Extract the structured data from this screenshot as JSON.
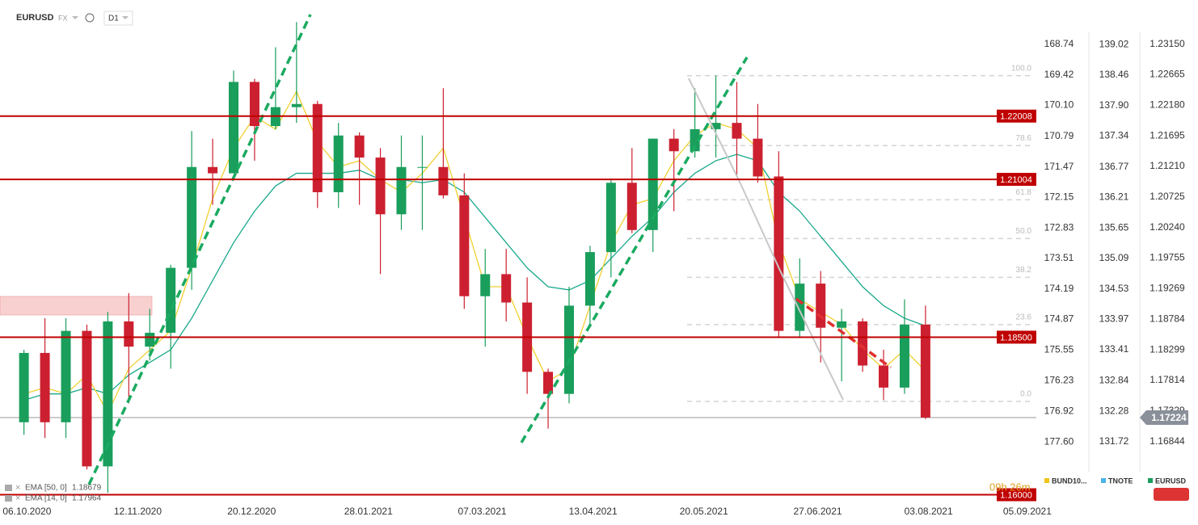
{
  "chart_data": {
    "type": "candlestick",
    "symbol": "EURUSD",
    "market": "FX",
    "interval": "D1",
    "up_color": "#1a9e5c",
    "down_color": "#cc2030",
    "x": [
      "05.10.2020",
      "12.10.2020",
      "19.10.2020",
      "26.10.2020",
      "02.11.2020",
      "09.11.2020",
      "16.11.2020",
      "23.11.2020",
      "30.11.2020",
      "07.12.2020",
      "14.12.2020",
      "21.12.2020",
      "28.12.2020",
      "04.01.2021",
      "11.01.2021",
      "18.01.2021",
      "25.01.2021",
      "01.02.2021",
      "08.02.2021",
      "15.02.2021",
      "22.02.2021",
      "01.03.2021",
      "08.03.2021",
      "15.03.2021",
      "22.03.2021",
      "29.03.2021",
      "05.04.2021",
      "12.04.2021",
      "19.04.2021",
      "26.04.2021",
      "03.05.2021",
      "10.05.2021",
      "17.05.2021",
      "24.05.2021",
      "31.05.2021",
      "07.06.2021",
      "14.06.2021",
      "21.06.2021",
      "28.06.2021",
      "05.07.2021",
      "12.07.2021",
      "19.07.2021",
      "26.07.2021",
      "02.08.2021"
    ],
    "open": [
      1.1715,
      1.1825,
      1.1715,
      1.186,
      1.1645,
      1.1875,
      1.1835,
      1.1857,
      1.196,
      1.212,
      1.211,
      1.2255,
      1.2185,
      1.2215,
      1.222,
      1.208,
      1.217,
      1.2135,
      1.2045,
      1.212,
      1.212,
      1.2075,
      1.1915,
      1.195,
      1.1905,
      1.1795,
      1.176,
      1.19,
      1.1985,
      1.2095,
      1.202,
      1.2165,
      1.2145,
      1.218,
      1.219,
      1.2165,
      1.2105,
      1.186,
      1.1935,
      1.1865,
      1.1875,
      1.1805,
      1.177,
      1.187
    ],
    "high": [
      1.183,
      1.188,
      1.188,
      1.187,
      1.189,
      1.192,
      1.1895,
      1.1965,
      1.2177,
      1.2165,
      1.2273,
      1.226,
      1.231,
      1.235,
      1.2225,
      1.219,
      1.2175,
      1.215,
      1.217,
      1.217,
      1.2245,
      1.211,
      1.199,
      1.199,
      1.1945,
      1.18,
      1.193,
      1.1995,
      1.21,
      1.215,
      1.2165,
      1.218,
      1.2245,
      1.2265,
      1.2255,
      1.222,
      1.2145,
      1.1975,
      1.1955,
      1.1895,
      1.188,
      1.183,
      1.191,
      1.19
    ],
    "low": [
      1.1695,
      1.169,
      1.169,
      1.164,
      1.1603,
      1.1745,
      1.1813,
      1.18,
      1.1925,
      1.206,
      1.211,
      1.213,
      1.218,
      1.219,
      1.2055,
      1.2055,
      1.206,
      1.195,
      1.202,
      1.202,
      1.207,
      1.1895,
      1.1835,
      1.1875,
      1.176,
      1.1705,
      1.1745,
      1.187,
      1.1945,
      1.2015,
      1.1985,
      1.205,
      1.2135,
      1.2135,
      1.2105,
      1.2095,
      1.185,
      1.185,
      1.181,
      1.178,
      1.1795,
      1.175,
      1.176,
      1.172
    ],
    "close": [
      1.1825,
      1.1715,
      1.186,
      1.1645,
      1.1875,
      1.1835,
      1.1857,
      1.196,
      1.212,
      1.211,
      1.2255,
      1.2185,
      1.2215,
      1.222,
      1.208,
      1.217,
      1.2135,
      1.2045,
      1.212,
      1.212,
      1.2075,
      1.1915,
      1.195,
      1.1905,
      1.1795,
      1.176,
      1.19,
      1.1985,
      1.2095,
      1.202,
      1.2165,
      1.2145,
      1.218,
      1.219,
      1.2165,
      1.2105,
      1.186,
      1.1935,
      1.1865,
      1.1875,
      1.1805,
      1.177,
      1.187,
      1.17224
    ],
    "series": [
      {
        "name": "EMA [50, 0]",
        "color": "#19a88a",
        "values": [
          1.175,
          1.176,
          1.176,
          1.177,
          1.176,
          1.179,
          1.181,
          1.183,
          1.188,
          1.194,
          1.2,
          1.205,
          1.209,
          1.211,
          1.211,
          1.211,
          1.2115,
          1.21,
          1.21,
          1.2095,
          1.21,
          1.208,
          1.204,
          1.2,
          1.196,
          1.193,
          1.1925,
          1.194,
          1.1975,
          1.201,
          1.204,
          1.208,
          1.211,
          1.213,
          1.214,
          1.213,
          1.208,
          1.205,
          1.201,
          1.197,
          1.193,
          1.19,
          1.188,
          1.18679
        ]
      },
      {
        "name": "EMA [14, 0]",
        "color": "#f0d030",
        "values": [
          1.176,
          1.177,
          1.176,
          1.179,
          1.173,
          1.18,
          1.183,
          1.186,
          1.196,
          1.207,
          1.215,
          1.22,
          1.218,
          1.224,
          1.216,
          1.212,
          1.213,
          1.21,
          1.208,
          1.211,
          1.215,
          1.204,
          1.193,
          1.193,
          1.185,
          1.178,
          1.18,
          1.19,
          1.2,
          1.206,
          1.207,
          1.213,
          1.217,
          1.219,
          1.218,
          1.215,
          1.2,
          1.191,
          1.189,
          1.187,
          1.183,
          1.18,
          1.183,
          1.17964
        ]
      }
    ],
    "levels": [
      1.22008,
      1.21004,
      {
        "value": 1.185,
        "label": "1.18500"
      },
      {
        "value": 1.16,
        "label": "1.16000"
      }
    ],
    "last_price": 1.17224,
    "fibonacci": [
      {
        "ratio": "100.0",
        "price": 1.2265
      },
      {
        "ratio": "78.6",
        "price": 1.2154
      },
      {
        "ratio": "61.8",
        "price": 1.2068
      },
      {
        "ratio": "50.0",
        "price": 1.20065
      },
      {
        "ratio": "38.2",
        "price": 1.1945
      },
      {
        "ratio": "23.6",
        "price": 1.187
      },
      {
        "ratio": "0.0",
        "price": 1.1748
      }
    ],
    "timer": "09h 26m",
    "xlim": [
      "27.09.2020",
      "08.09.2021"
    ],
    "xticks": [
      "06.10.2020",
      "12.11.2020",
      "20.12.2020",
      "28.01.2021",
      "07.03.2021",
      "13.04.2021",
      "20.05.2021",
      "27.06.2021",
      "03.08.2021",
      "05.09.2021"
    ],
    "axes": [
      {
        "name": "BUND10...",
        "color": "#f0c419",
        "ylim": [
          179.0,
          167.75
        ],
        "yticks": [
          168.74,
          169.42,
          {
            "value": 170.1,
            "label": "170.10"
          },
          170.79,
          171.47,
          172.15,
          172.83,
          173.51,
          174.19,
          174.87,
          175.55,
          176.23,
          176.92,
          {
            "value": 177.6,
            "label": "177.60"
          }
        ]
      },
      {
        "name": "TNOTE",
        "color": "#4ab3e8",
        "ylim": [
          130.56,
          139.84
        ],
        "yticks": [
          139.02,
          138.46,
          {
            "value": 137.9,
            "label": "137.90"
          },
          137.34,
          136.77,
          136.21,
          135.65,
          135.09,
          134.53,
          133.97,
          133.41,
          132.84,
          132.28,
          131.72
        ]
      },
      {
        "name": "EURUSD",
        "color": "#1a9e5c",
        "ylim": [
          1.1584,
          1.2385
        ],
        "yticks": [
          {
            "value": 1.2315,
            "label": "1.23150"
          },
          1.22665,
          {
            "value": 1.2218,
            "label": "1.22180"
          },
          1.21695,
          {
            "value": 1.2121,
            "label": "1.21210"
          },
          1.20725,
          {
            "value": 1.2024,
            "label": "1.20240"
          },
          1.19755,
          1.19269,
          1.18784,
          1.18299,
          1.17814,
          1.17329,
          1.16844
        ]
      }
    ]
  }
}
